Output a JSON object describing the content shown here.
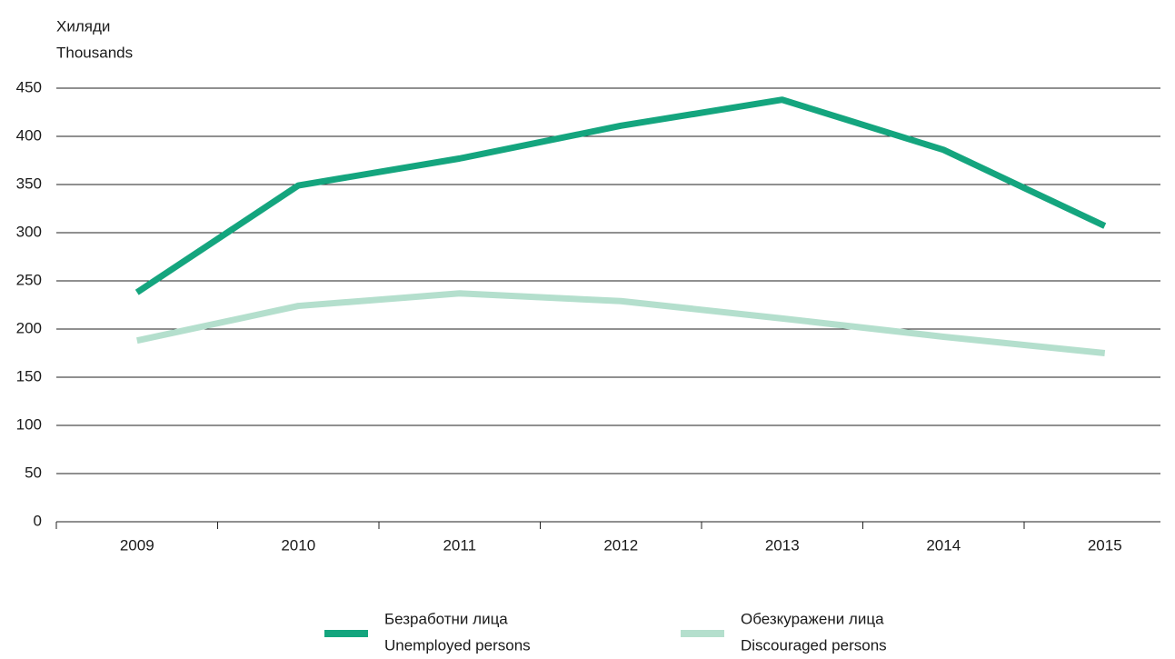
{
  "chart_data": {
    "type": "line",
    "axis_title": [
      "Хиляди",
      "Thousands"
    ],
    "categories": [
      "2009",
      "2010",
      "2011",
      "2012",
      "2013",
      "2014",
      "2015"
    ],
    "series": [
      {
        "name": [
          "Безработни лица",
          "Unemployed persons"
        ],
        "color": "#14a57e",
        "values": [
          238,
          349,
          377,
          411,
          438,
          386,
          307
        ]
      },
      {
        "name": [
          "Обезкуражени лица",
          "Discouraged persons"
        ],
        "color": "#b4dfcd",
        "values": [
          188,
          224,
          237,
          229,
          211,
          192,
          175
        ]
      }
    ],
    "ylim": [
      0,
      450
    ],
    "yticks": [
      0,
      50,
      100,
      150,
      200,
      250,
      300,
      350,
      400,
      450
    ],
    "grid": true
  }
}
